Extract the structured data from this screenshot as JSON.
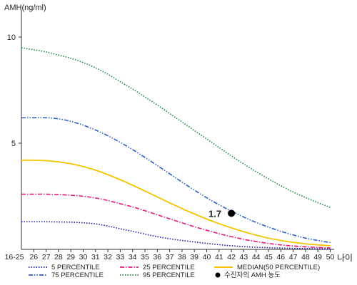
{
  "chart_data": {
    "type": "line",
    "ylabel": "AMH(ng/ml)",
    "xlabel": "나이",
    "ylim": [
      0,
      11
    ],
    "yticks": [
      5,
      10
    ],
    "categories": [
      "16-25",
      "26",
      "27",
      "28",
      "29",
      "30",
      "31",
      "32",
      "33",
      "34",
      "35",
      "36",
      "37",
      "38",
      "39",
      "40",
      "41",
      "42",
      "43",
      "44",
      "45",
      "46",
      "47",
      "48",
      "49",
      "50"
    ],
    "series": [
      {
        "name": "5 PERCENTILE",
        "color": "#1a1aa6",
        "dash": "dot",
        "values": [
          1.3,
          1.3,
          1.3,
          1.29,
          1.28,
          1.25,
          1.2,
          1.1,
          0.97,
          0.85,
          0.72,
          0.6,
          0.5,
          0.42,
          0.35,
          0.28,
          0.22,
          0.17,
          0.13,
          0.1,
          0.08,
          0.06,
          0.05,
          0.04,
          0.03,
          0.02
        ]
      },
      {
        "name": "25 PERCENTILE",
        "color": "#e6197a",
        "dash": "dashdot",
        "values": [
          2.6,
          2.6,
          2.6,
          2.58,
          2.55,
          2.5,
          2.42,
          2.3,
          2.15,
          2.0,
          1.82,
          1.63,
          1.44,
          1.25,
          1.07,
          0.9,
          0.74,
          0.6,
          0.47,
          0.37,
          0.28,
          0.21,
          0.16,
          0.12,
          0.09,
          0.07
        ]
      },
      {
        "name": "MEDIAN(50 PERCENTILE)",
        "color": "#f2c500",
        "dash": "solid",
        "values": [
          4.2,
          4.2,
          4.18,
          4.12,
          4.03,
          3.9,
          3.73,
          3.52,
          3.28,
          3.02,
          2.75,
          2.47,
          2.19,
          1.92,
          1.67,
          1.43,
          1.21,
          1.01,
          0.83,
          0.67,
          0.53,
          0.42,
          0.33,
          0.26,
          0.21,
          0.17
        ]
      },
      {
        "name": "75 PERCENTILE",
        "color": "#2f5fc4",
        "dash": "dashdotdot",
        "values": [
          6.2,
          6.2,
          6.2,
          6.15,
          6.03,
          5.85,
          5.62,
          5.35,
          5.04,
          4.7,
          4.33,
          3.95,
          3.56,
          3.17,
          2.79,
          2.43,
          2.1,
          1.8,
          1.52,
          1.27,
          1.05,
          0.85,
          0.68,
          0.53,
          0.42,
          0.32
        ]
      },
      {
        "name": "95 PERCENTILE",
        "color": "#1b8a3e",
        "dash": "dot",
        "values": [
          9.5,
          9.4,
          9.3,
          9.15,
          9.0,
          8.8,
          8.55,
          8.25,
          7.9,
          7.55,
          7.18,
          6.8,
          6.4,
          6.0,
          5.6,
          5.2,
          4.8,
          4.4,
          4.02,
          3.66,
          3.32,
          3.0,
          2.7,
          2.44,
          2.2,
          1.98
        ]
      }
    ],
    "point": {
      "category": "42",
      "value": 1.7,
      "label": "1.7",
      "color": "#000000",
      "legend": "수진자의 AMH 농도"
    },
    "legend_position": "bottom"
  }
}
